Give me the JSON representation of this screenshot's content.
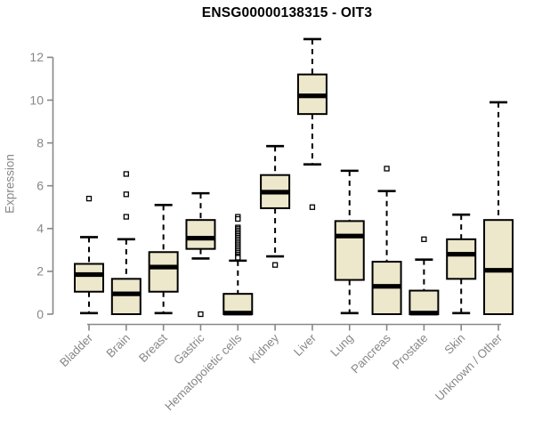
{
  "chart_data": {
    "type": "boxplot",
    "title": "ENSG00000138315 - OIT3",
    "ylabel": "Expression",
    "xlabel": "",
    "ylim": [
      0,
      12
    ],
    "yticks": [
      0,
      2,
      4,
      6,
      8,
      10,
      12
    ],
    "grid": false,
    "legend": null,
    "colors": {
      "box_fill": "#EDE7CB",
      "box_border": "#000000",
      "median": "#000000",
      "axis": "#878787",
      "tick_label": "#878787",
      "title": "#000000",
      "background": "#FFFFFF"
    },
    "categories": [
      "Bladder",
      "Brain",
      "Breast",
      "Gastric",
      "Hematopoietic cells",
      "Kidney",
      "Liver",
      "Lung",
      "Pancreas",
      "Prostate",
      "Skin",
      "Unknown / Other"
    ],
    "boxes": [
      {
        "category": "Bladder",
        "whisker_low": 0.05,
        "q1": 1.05,
        "median": 1.85,
        "q3": 2.35,
        "whisker_high": 3.6,
        "outliers": [
          5.4
        ]
      },
      {
        "category": "Brain",
        "whisker_low": 0.0,
        "q1": 0.0,
        "median": 0.95,
        "q3": 1.65,
        "whisker_high": 3.5,
        "outliers": [
          4.55,
          5.6,
          6.55
        ]
      },
      {
        "category": "Breast",
        "whisker_low": 0.05,
        "q1": 1.05,
        "median": 2.2,
        "q3": 2.9,
        "whisker_high": 5.1,
        "outliers": []
      },
      {
        "category": "Gastric",
        "whisker_low": 2.6,
        "q1": 3.05,
        "median": 3.55,
        "q3": 4.4,
        "whisker_high": 5.65,
        "outliers": [
          0.0
        ]
      },
      {
        "category": "Hematopoietic cells",
        "whisker_low": 0.0,
        "q1": 0.0,
        "median": 0.05,
        "q3": 0.95,
        "whisker_high": 2.5,
        "outliers": [
          4.55,
          4.45,
          4.05,
          3.98,
          3.9,
          3.82,
          3.74,
          3.66,
          3.58,
          3.5,
          3.42,
          3.34,
          3.26,
          3.18,
          3.1,
          3.02,
          2.94,
          2.86,
          2.78,
          2.7,
          2.64
        ]
      },
      {
        "category": "Kidney",
        "whisker_low": 2.7,
        "q1": 4.95,
        "median": 5.7,
        "q3": 6.5,
        "whisker_high": 7.85,
        "outliers": [
          2.3
        ]
      },
      {
        "category": "Liver",
        "whisker_low": 7.0,
        "q1": 9.35,
        "median": 10.2,
        "q3": 11.2,
        "whisker_high": 12.85,
        "outliers": [
          5.0
        ]
      },
      {
        "category": "Lung",
        "whisker_low": 0.05,
        "q1": 1.6,
        "median": 3.65,
        "q3": 4.35,
        "whisker_high": 6.7,
        "outliers": []
      },
      {
        "category": "Pancreas",
        "whisker_low": 0.0,
        "q1": 0.0,
        "median": 1.3,
        "q3": 2.45,
        "whisker_high": 5.75,
        "outliers": [
          6.8
        ]
      },
      {
        "category": "Prostate",
        "whisker_low": 0.0,
        "q1": 0.0,
        "median": 0.05,
        "q3": 1.1,
        "whisker_high": 2.55,
        "outliers": [
          3.5
        ]
      },
      {
        "category": "Skin",
        "whisker_low": 0.05,
        "q1": 1.65,
        "median": 2.8,
        "q3": 3.5,
        "whisker_high": 4.65,
        "outliers": []
      },
      {
        "category": "Unknown / Other",
        "whisker_low": 0.0,
        "q1": 0.0,
        "median": 2.05,
        "q3": 4.4,
        "whisker_high": 9.9,
        "outliers": []
      }
    ]
  }
}
